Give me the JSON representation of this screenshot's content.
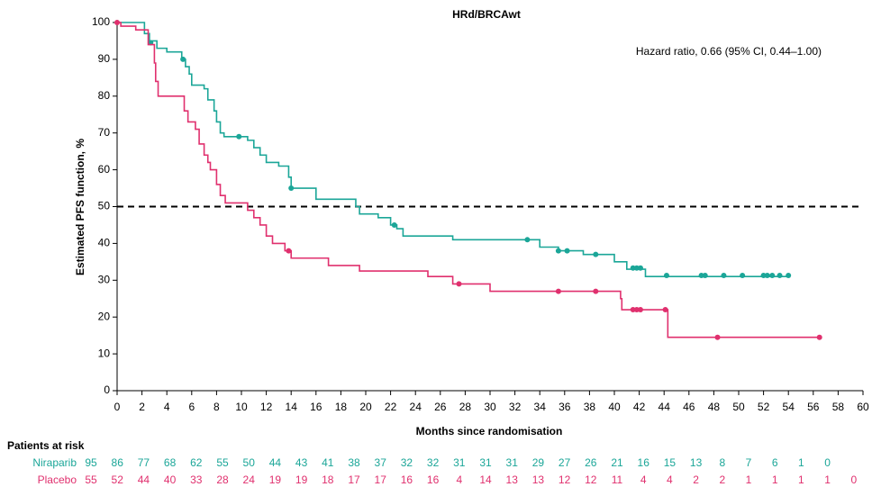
{
  "chart_data": {
    "type": "kaplan-meier",
    "title": "HRd/BRCAwt",
    "annotation": "Hazard ratio, 0.66 (95% CI, 0.44–1.00)",
    "x_label": "Months since randomisation",
    "y_label": "Estimated PFS function, %",
    "xlim": [
      0,
      60
    ],
    "ylim": [
      0,
      100
    ],
    "xticks": [
      0,
      2,
      4,
      6,
      8,
      10,
      12,
      14,
      16,
      18,
      20,
      22,
      24,
      26,
      28,
      30,
      32,
      34,
      36,
      38,
      40,
      42,
      44,
      46,
      48,
      50,
      52,
      54,
      56,
      58,
      60
    ],
    "yticks": [
      0,
      10,
      20,
      30,
      40,
      50,
      60,
      70,
      80,
      90,
      100
    ],
    "reference_line": 50,
    "risk_title": "Patients at risk",
    "series": [
      {
        "name": "Niraparib",
        "color": "#1ba698",
        "x": [
          0,
          2.2,
          2.6,
          3.2,
          4.0,
          5.2,
          5.5,
          5.8,
          6.0,
          7.0,
          7.3,
          7.8,
          8.0,
          8.3,
          8.6,
          10.5,
          11.0,
          11.5,
          12.0,
          13.0,
          13.8,
          14.0,
          16.0,
          19.2,
          19.5,
          21.0,
          22.0,
          22.5,
          23.0,
          27.0,
          34.0,
          35.5,
          37.5,
          40.0,
          41.0,
          42.5,
          54.0
        ],
        "values": [
          100,
          97,
          95,
          93,
          92,
          90,
          88,
          86,
          83,
          82,
          79,
          76,
          73,
          70,
          69,
          68,
          66,
          64,
          62,
          61,
          58,
          55,
          52,
          50,
          48,
          47,
          45,
          44,
          42,
          41,
          39,
          38,
          37,
          35,
          33,
          31,
          31
        ],
        "censor_x": [
          2.7,
          5.3,
          9.8,
          14.0,
          22.3,
          33.0,
          35.5,
          36.2,
          38.5,
          41.5,
          41.8,
          42.1,
          44.2,
          47.0,
          47.3,
          48.8,
          50.3,
          52.0,
          52.3,
          52.7,
          53.3,
          54.0
        ],
        "censor_values": [
          94.5,
          90,
          69,
          55,
          45,
          41,
          38,
          38,
          37,
          33.3,
          33.3,
          33.3,
          31.3,
          31.3,
          31.3,
          31.3,
          31.3,
          31.3,
          31.3,
          31.3,
          31.3,
          31.3
        ],
        "at_risk": [
          95,
          86,
          77,
          68,
          62,
          55,
          50,
          44,
          43,
          41,
          38,
          37,
          32,
          32,
          31,
          31,
          31,
          29,
          27,
          26,
          21,
          16,
          15,
          13,
          8,
          7,
          6,
          1,
          0
        ]
      },
      {
        "name": "Placebo",
        "color": "#e0306e",
        "x": [
          0,
          0.3,
          1.5,
          2.5,
          3.0,
          3.1,
          3.3,
          5.4,
          5.7,
          6.3,
          6.6,
          7.0,
          7.3,
          7.5,
          8.0,
          8.3,
          8.7,
          10.5,
          11.0,
          11.5,
          12.0,
          12.5,
          13.5,
          14.0,
          17.0,
          19.5,
          25.0,
          27.0,
          30.0,
          40.5,
          40.6,
          44.3,
          56.5
        ],
        "values": [
          100,
          99,
          98,
          94,
          89,
          84,
          80,
          76,
          73,
          71,
          67,
          64,
          62,
          60,
          56,
          53,
          51,
          49,
          47,
          45,
          42,
          40,
          38,
          36,
          34,
          32.5,
          31,
          29,
          27,
          25,
          22,
          14.5,
          14.5
        ],
        "censor_x": [
          0,
          13.8,
          27.5,
          35.5,
          38.5,
          41.5,
          41.8,
          42.1,
          44.1,
          48.3,
          56.5
        ],
        "censor_values": [
          100,
          38,
          29,
          27,
          27,
          22,
          22,
          22,
          22,
          14.5,
          14.5
        ],
        "at_risk": [
          55,
          52,
          44,
          40,
          33,
          28,
          24,
          19,
          19,
          18,
          17,
          17,
          16,
          16,
          4,
          14,
          13,
          13,
          12,
          12,
          11,
          4,
          4,
          2,
          2,
          1,
          1,
          1,
          1,
          0
        ]
      }
    ]
  }
}
